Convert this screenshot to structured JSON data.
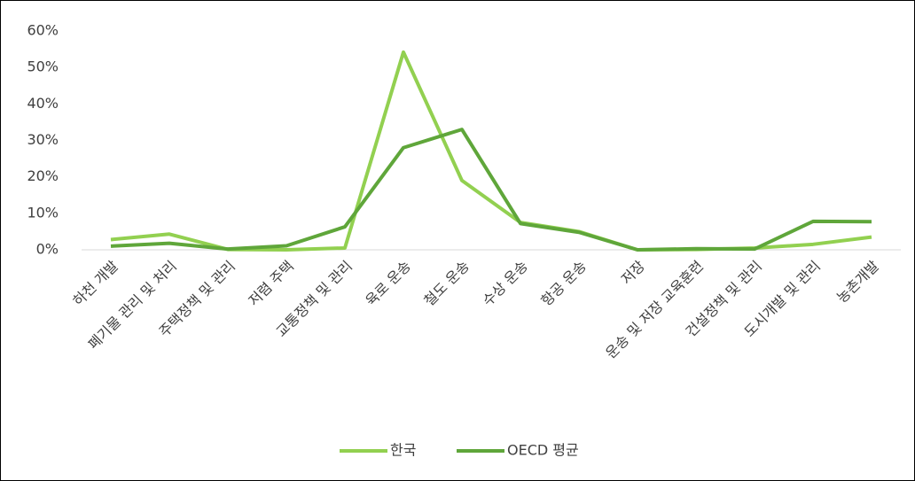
{
  "chart_data": {
    "type": "line",
    "categories": [
      "하천 개발",
      "폐기물 관리 및 처리",
      "주택정책 및 관리",
      "저렴 주택",
      "교통정책 및 관리",
      "육로 운송",
      "철도 운송",
      "수상 운송",
      "항공 운송",
      "저장",
      "운송 및 저장 교육훈련",
      "건설정책 및 관리",
      "도시개발 및 관리",
      "농촌개발"
    ],
    "series": [
      {
        "name": "한국",
        "color": "#92d050",
        "values": [
          2.8,
          4.3,
          0.1,
          0,
          0.5,
          54.2,
          19,
          7.5,
          5,
          0,
          0.1,
          0.5,
          1.5,
          3.5
        ]
      },
      {
        "name": "OECD 평균",
        "color": "#5fa63a",
        "values": [
          1,
          1.8,
          0.2,
          1.1,
          6.3,
          28,
          33,
          7.2,
          4.8,
          0,
          0.3,
          0.2,
          7.8,
          7.7
        ]
      }
    ],
    "ylim": [
      0,
      60
    ],
    "yticks": [
      {
        "value": 0,
        "label": "0%"
      },
      {
        "value": 10,
        "label": "10%"
      },
      {
        "value": 20,
        "label": "20%"
      },
      {
        "value": 30,
        "label": "30%"
      },
      {
        "value": 40,
        "label": "40%"
      },
      {
        "value": 50,
        "label": "50%"
      },
      {
        "value": 60,
        "label": "60%"
      }
    ],
    "grid": false,
    "legend": "bottom"
  }
}
